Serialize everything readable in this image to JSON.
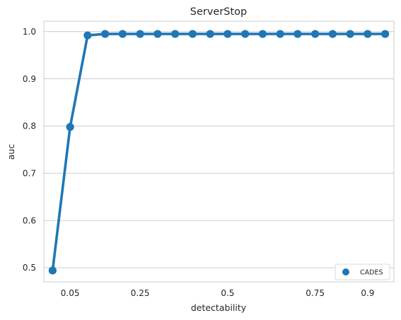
{
  "chart_data": {
    "type": "line",
    "title": "ServerStop",
    "xlabel": "detectability",
    "ylabel": "auc",
    "x": [
      0.0,
      0.05,
      0.1,
      0.15,
      0.2,
      0.25,
      0.3,
      0.35,
      0.4,
      0.45,
      0.5,
      0.55,
      0.6,
      0.65,
      0.7,
      0.75,
      0.8,
      0.85,
      0.9,
      0.95
    ],
    "x_tick_values": [
      0.05,
      0.25,
      0.5,
      0.75,
      0.9
    ],
    "x_tick_labels": [
      "0.05",
      "0.25",
      "0.5",
      "0.75",
      "0.9"
    ],
    "y_ticks": [
      0.5,
      0.6,
      0.7,
      0.8,
      0.9,
      1.0
    ],
    "y_tick_labels": [
      "0.5",
      "0.6",
      "0.7",
      "0.8",
      "0.9",
      "1.0"
    ],
    "ylim": [
      0.47,
      1.022
    ],
    "xlim": [
      -0.025,
      0.975
    ],
    "grid": "horizontal",
    "legend_position": "bottom-right",
    "series": [
      {
        "name": "CADES",
        "color": "#1f77b4",
        "values": [
          0.494,
          0.798,
          0.992,
          0.995,
          0.995,
          0.995,
          0.995,
          0.995,
          0.995,
          0.995,
          0.995,
          0.995,
          0.995,
          0.995,
          0.995,
          0.995,
          0.995,
          0.995,
          0.995,
          0.995
        ]
      }
    ]
  }
}
